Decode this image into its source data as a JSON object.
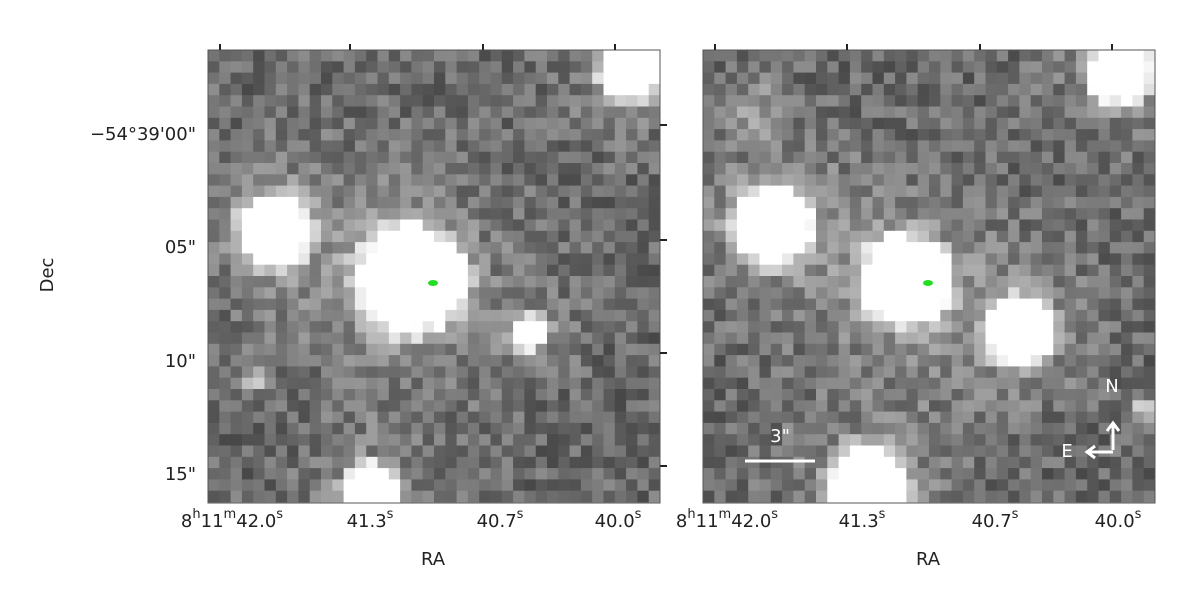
{
  "panels": [
    {
      "x_ticks": [
        [
          "8",
          "h",
          "11",
          "m",
          "42.0",
          "s"
        ],
        [
          "41.3",
          "s"
        ],
        [
          "40.7",
          "s"
        ],
        [
          "40.0",
          "s"
        ]
      ],
      "x_label": "RA",
      "y_ticks": [
        "−54°39'00\"",
        "05\"",
        "10\"",
        "15\""
      ],
      "y_label": "Dec"
    },
    {
      "x_ticks": [
        [
          "8",
          "h",
          "11",
          "m",
          "42.0",
          "s"
        ],
        [
          "41.3",
          "s"
        ],
        [
          "40.7",
          "s"
        ],
        [
          "40.0",
          "s"
        ]
      ],
      "x_label": "RA",
      "scale_bar": "3\"",
      "compass": {
        "north": "N",
        "east": "E"
      }
    }
  ]
}
